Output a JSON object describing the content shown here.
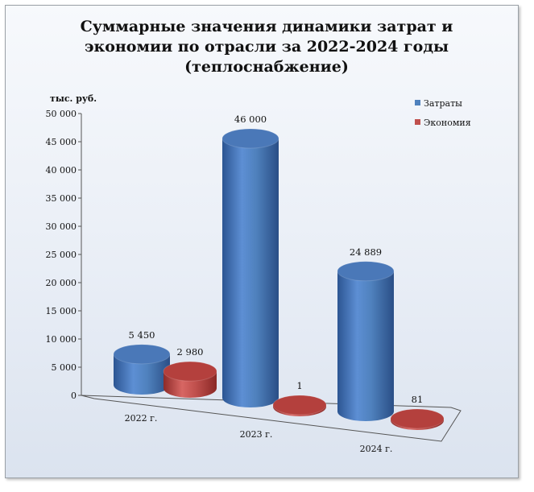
{
  "chart_data": {
    "type": "bar",
    "title_lines": [
      "Суммарные значения динамики затрат и",
      "экономии по отрасли за 2022-2024 годы",
      "(теплоснабжение)"
    ],
    "unit_label": "тыс. руб.",
    "categories": [
      "2022 г.",
      "2023 г.",
      "2024 г."
    ],
    "series": [
      {
        "name": "Затраты",
        "color": "#4f81bd",
        "values": [
          5450,
          46000,
          24889
        ],
        "labels": [
          "5 450",
          "46 000",
          "24 889"
        ]
      },
      {
        "name": "Экономия",
        "color": "#c0504d",
        "values": [
          2980,
          1,
          81
        ],
        "labels": [
          "2 980",
          "1",
          "81"
        ]
      }
    ],
    "y_ticks": [
      "0",
      "5 000",
      "10 000",
      "15 000",
      "20 000",
      "25 000",
      "30 000",
      "35 000",
      "40 000",
      "45 000",
      "50 000"
    ],
    "ylim": [
      0,
      50000
    ],
    "legend_position": "top-right",
    "style": "3d-cylinder"
  }
}
